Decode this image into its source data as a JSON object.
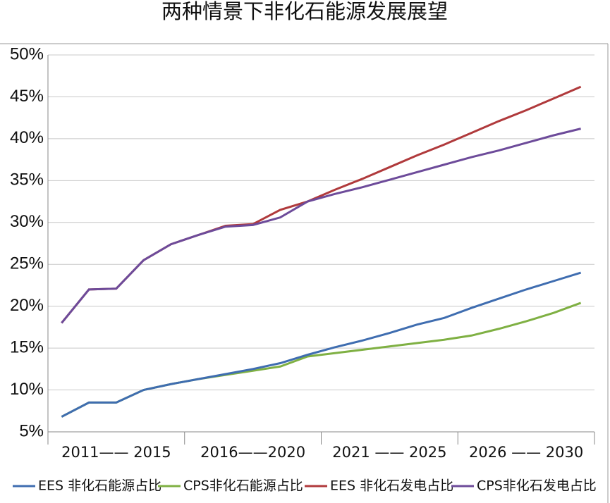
{
  "chart_data": {
    "type": "line",
    "title": "两种情景下非化石能源发展展望",
    "categories": [
      null,
      null,
      null,
      null,
      null,
      null,
      null,
      null,
      null,
      null,
      null,
      null,
      null,
      null,
      null,
      null,
      null,
      null,
      null,
      null
    ],
    "category_groups": [
      "2011—— 2015",
      "2016——2020",
      "2021 —— 2025",
      "2026 —— 2030"
    ],
    "series": [
      {
        "name": "EES 非化石能源占比",
        "color": "#3f6db0",
        "values": [
          6.8,
          8.5,
          8.5,
          10.0,
          10.7,
          11.3,
          11.9,
          12.5,
          13.2,
          14.2,
          15.1,
          15.9,
          16.8,
          17.8,
          18.6,
          19.8,
          20.9,
          22.0,
          23.0,
          24.0
        ]
      },
      {
        "name": "CPS非化石能源占比",
        "color": "#7fb043",
        "values": [
          6.8,
          8.5,
          8.5,
          10.0,
          10.7,
          11.3,
          11.8,
          12.3,
          12.8,
          14.0,
          14.4,
          14.8,
          15.2,
          15.6,
          16.0,
          16.5,
          17.3,
          18.2,
          19.2,
          20.4
        ]
      },
      {
        "name": "EES 非化石发电占比",
        "color": "#b03a3c",
        "values": [
          18.0,
          22.0,
          22.1,
          25.5,
          27.4,
          28.5,
          29.6,
          29.8,
          31.5,
          32.5,
          33.9,
          35.2,
          36.6,
          38.0,
          39.3,
          40.7,
          42.1,
          43.4,
          44.8,
          46.2
        ]
      },
      {
        "name": "CPS非化石发电占比",
        "color": "#6d4b9a",
        "values": [
          18.0,
          22.0,
          22.1,
          25.5,
          27.4,
          28.5,
          29.5,
          29.7,
          30.6,
          32.5,
          33.4,
          34.2,
          35.1,
          36.0,
          36.9,
          37.8,
          38.6,
          39.5,
          40.4,
          41.2
        ]
      }
    ],
    "ylim": [
      5,
      50
    ],
    "yticks": [
      {
        "value": 5,
        "label": "5%"
      },
      {
        "value": 10,
        "label": "10%"
      },
      {
        "value": 15,
        "label": "15%"
      },
      {
        "value": 20,
        "label": "20%"
      },
      {
        "value": 25,
        "label": "25%"
      },
      {
        "value": 30,
        "label": "30%"
      },
      {
        "value": 35,
        "label": "35%"
      },
      {
        "value": 40,
        "label": "40%"
      },
      {
        "value": 45,
        "label": "45%"
      },
      {
        "value": 50,
        "label": "50%"
      }
    ],
    "grid": true
  }
}
